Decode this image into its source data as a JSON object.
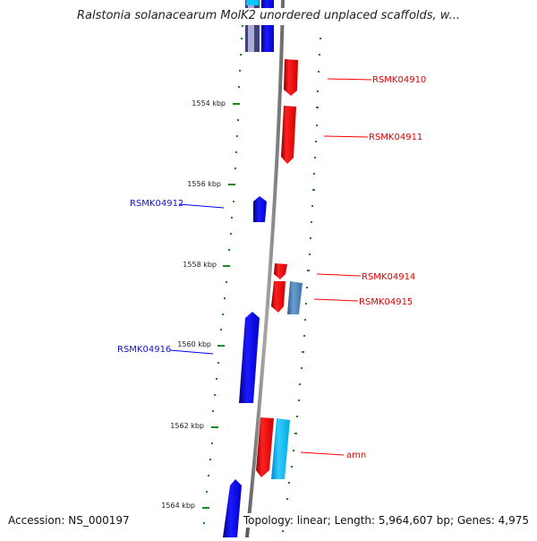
{
  "title": "Ralstonia solanacearum MolK2 unordered unplaced scaffolds, w...",
  "footer": {
    "accession": "Accession: NS_000197",
    "topology": "Topology: linear;",
    "length": "Length: 5,964,607 bp;",
    "genes": "Genes: 4,975"
  },
  "axis_labels": [
    "1554 kbp",
    "1556 kbp",
    "1558 kbp",
    "1560 kbp",
    "1562 kbp",
    "1564 kbp"
  ],
  "gene_labels": {
    "rsmk04910": "RSMK04910",
    "rsmk04911": "RSMK04911",
    "rsmk04912": "RSMK04912",
    "rsmk04914": "RSMK04914",
    "rsmk04915": "RSMK04915",
    "rsmk04916": "RSMK04916",
    "amn": "amn"
  },
  "colors": {
    "forward_strand": "#ff0000",
    "reverse_strand": "#0000ff",
    "rna": "#00bfff",
    "other": "#4f86c0",
    "tick": "#1a8a1a",
    "backbone": "#888888"
  }
}
